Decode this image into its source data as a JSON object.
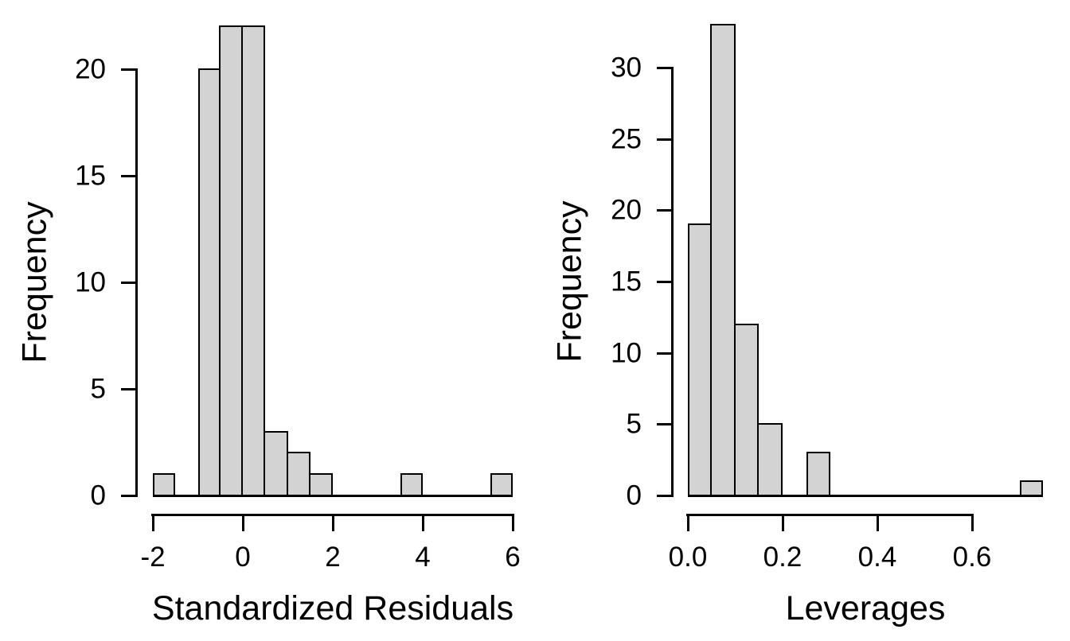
{
  "figure": {
    "background": "#ffffff",
    "bar_fill": "#d3d3d3",
    "bar_border": "#000000",
    "axis_color": "#000000"
  },
  "chart_data": [
    {
      "type": "bar",
      "variant": "histogram",
      "title": "",
      "xlabel": "Standardized Residuals",
      "ylabel": "Frequency",
      "xlim": [
        -2,
        6
      ],
      "ylim": [
        0,
        22
      ],
      "bin_width": 0.5,
      "grid": false,
      "legend": false,
      "bins": [
        {
          "x0": -2.0,
          "x1": -1.5,
          "count": 1
        },
        {
          "x0": -1.5,
          "x1": -1.0,
          "count": 0
        },
        {
          "x0": -1.0,
          "x1": -0.5,
          "count": 20
        },
        {
          "x0": -0.5,
          "x1": 0.0,
          "count": 22
        },
        {
          "x0": 0.0,
          "x1": 0.5,
          "count": 22
        },
        {
          "x0": 0.5,
          "x1": 1.0,
          "count": 3
        },
        {
          "x0": 1.0,
          "x1": 1.5,
          "count": 2
        },
        {
          "x0": 1.5,
          "x1": 2.0,
          "count": 1
        },
        {
          "x0": 2.0,
          "x1": 2.5,
          "count": 0
        },
        {
          "x0": 2.5,
          "x1": 3.0,
          "count": 0
        },
        {
          "x0": 3.0,
          "x1": 3.5,
          "count": 0
        },
        {
          "x0": 3.5,
          "x1": 4.0,
          "count": 1
        },
        {
          "x0": 4.0,
          "x1": 4.5,
          "count": 0
        },
        {
          "x0": 4.5,
          "x1": 5.0,
          "count": 0
        },
        {
          "x0": 5.0,
          "x1": 5.5,
          "count": 0
        },
        {
          "x0": 5.5,
          "x1": 6.0,
          "count": 1
        }
      ],
      "x_ticks": [
        -2,
        0,
        2,
        4,
        6
      ],
      "x_tick_labels": [
        "-2",
        "0",
        "2",
        "4",
        "6"
      ],
      "y_ticks": [
        0,
        5,
        10,
        15,
        20
      ],
      "y_tick_labels": [
        "0",
        "5",
        "10",
        "15",
        "20"
      ]
    },
    {
      "type": "bar",
      "variant": "histogram",
      "title": "",
      "xlabel": "Leverages",
      "ylabel": "Frequency",
      "xlim": [
        0,
        0.75
      ],
      "ylim": [
        0,
        33
      ],
      "bin_width": 0.05,
      "grid": false,
      "legend": false,
      "bins": [
        {
          "x0": 0.0,
          "x1": 0.05,
          "count": 19
        },
        {
          "x0": 0.05,
          "x1": 0.1,
          "count": 33
        },
        {
          "x0": 0.1,
          "x1": 0.15,
          "count": 12
        },
        {
          "x0": 0.15,
          "x1": 0.2,
          "count": 5
        },
        {
          "x0": 0.2,
          "x1": 0.25,
          "count": 0
        },
        {
          "x0": 0.25,
          "x1": 0.3,
          "count": 3
        },
        {
          "x0": 0.3,
          "x1": 0.35,
          "count": 0
        },
        {
          "x0": 0.35,
          "x1": 0.4,
          "count": 0
        },
        {
          "x0": 0.4,
          "x1": 0.45,
          "count": 0
        },
        {
          "x0": 0.45,
          "x1": 0.5,
          "count": 0
        },
        {
          "x0": 0.5,
          "x1": 0.55,
          "count": 0
        },
        {
          "x0": 0.55,
          "x1": 0.6,
          "count": 0
        },
        {
          "x0": 0.6,
          "x1": 0.65,
          "count": 0
        },
        {
          "x0": 0.65,
          "x1": 0.7,
          "count": 0
        },
        {
          "x0": 0.7,
          "x1": 0.75,
          "count": 1
        }
      ],
      "x_ticks": [
        0.0,
        0.2,
        0.4,
        0.6
      ],
      "x_tick_labels": [
        "0.0",
        "0.2",
        "0.4",
        "0.6"
      ],
      "y_ticks": [
        0,
        5,
        10,
        15,
        20,
        25,
        30
      ],
      "y_tick_labels": [
        "0",
        "5",
        "10",
        "15",
        "20",
        "25",
        "30"
      ]
    }
  ]
}
